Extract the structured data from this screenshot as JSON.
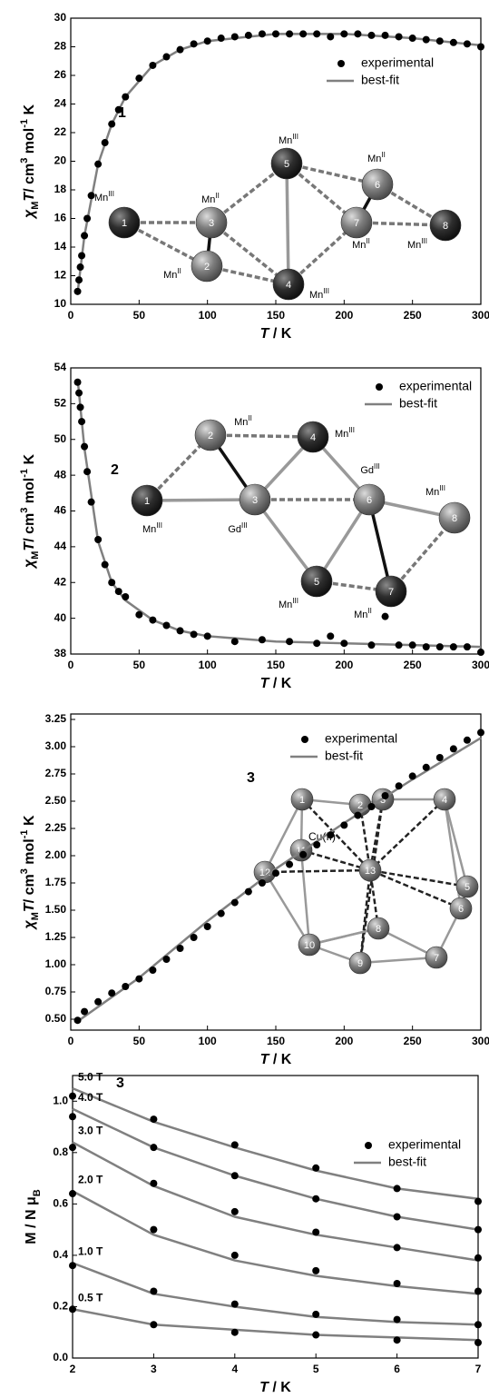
{
  "chart_data": [
    {
      "type": "scatter",
      "label": "1",
      "xlim": [
        0,
        300
      ],
      "ylim": [
        10,
        30
      ],
      "xticks": [
        0,
        50,
        100,
        150,
        200,
        250,
        300
      ],
      "yticks": [
        10,
        12,
        14,
        16,
        18,
        20,
        22,
        24,
        26,
        28,
        30
      ],
      "xlabel": [
        "T",
        " / K"
      ],
      "ylabel": [
        "χ",
        "M",
        "T",
        "/ cm",
        "3",
        " mol",
        "-1",
        " K"
      ],
      "legend": "upper right",
      "series": [
        {
          "name": "experimental",
          "mode": "markers",
          "color": "#000000",
          "x": [
            5,
            6,
            7,
            8,
            10,
            12,
            15,
            20,
            25,
            30,
            35,
            40,
            50,
            60,
            70,
            80,
            90,
            100,
            110,
            120,
            130,
            140,
            150,
            160,
            170,
            180,
            190,
            200,
            210,
            220,
            230,
            240,
            250,
            260,
            270,
            280,
            290,
            300
          ],
          "values": [
            10.9,
            11.7,
            12.6,
            13.4,
            14.8,
            16.0,
            17.6,
            19.8,
            21.3,
            22.6,
            23.6,
            24.5,
            25.8,
            26.7,
            27.3,
            27.8,
            28.2,
            28.4,
            28.6,
            28.7,
            28.8,
            28.9,
            28.9,
            28.9,
            28.9,
            28.9,
            28.7,
            28.9,
            28.9,
            28.8,
            28.8,
            28.7,
            28.6,
            28.5,
            28.4,
            28.3,
            28.2,
            28.0
          ]
        },
        {
          "name": "best-fit",
          "mode": "line",
          "color": "#808080",
          "x": [
            5,
            10,
            20,
            30,
            40,
            60,
            80,
            100,
            150,
            200,
            250,
            300
          ],
          "values": [
            10.8,
            14.8,
            19.8,
            22.6,
            24.5,
            26.7,
            27.8,
            28.4,
            28.9,
            28.9,
            28.6,
            28.1
          ]
        }
      ],
      "inset": {
        "nodes": [
          {
            "label": "1",
            "element": "Mn",
            "oxidation": "III"
          },
          {
            "label": "2",
            "element": "Mn",
            "oxidation": "II"
          },
          {
            "label": "3",
            "element": "Mn",
            "oxidation": "II"
          },
          {
            "label": "4",
            "element": "Mn",
            "oxidation": "III"
          },
          {
            "label": "5",
            "element": "Mn",
            "oxidation": "III"
          },
          {
            "label": "6",
            "element": "Mn",
            "oxidation": "II"
          },
          {
            "label": "7",
            "element": "Mn",
            "oxidation": "II"
          },
          {
            "label": "8",
            "element": "Mn",
            "oxidation": "III"
          }
        ]
      }
    },
    {
      "type": "scatter",
      "label": "2",
      "xlim": [
        0,
        300
      ],
      "ylim": [
        38,
        54
      ],
      "xticks": [
        0,
        50,
        100,
        150,
        200,
        250,
        300
      ],
      "yticks": [
        38,
        40,
        42,
        44,
        46,
        48,
        50,
        52,
        54
      ],
      "xlabel": [
        "T",
        " / K"
      ],
      "ylabel": [
        "χ",
        "M",
        "T",
        "/ cm",
        "3",
        " mol",
        "-1",
        " K"
      ],
      "legend": "upper right",
      "series": [
        {
          "name": "experimental",
          "mode": "markers",
          "color": "#000000",
          "x": [
            5,
            6,
            7,
            8,
            10,
            12,
            15,
            20,
            25,
            30,
            35,
            40,
            50,
            60,
            70,
            80,
            90,
            100,
            120,
            140,
            160,
            180,
            190,
            200,
            220,
            230,
            240,
            250,
            260,
            270,
            280,
            290,
            300
          ],
          "values": [
            53.2,
            52.6,
            51.8,
            51.0,
            49.6,
            48.2,
            46.5,
            44.4,
            43.0,
            42.0,
            41.5,
            41.2,
            40.2,
            39.9,
            39.6,
            39.3,
            39.1,
            39.0,
            38.7,
            38.8,
            38.7,
            38.6,
            39.0,
            38.6,
            38.5,
            40.1,
            38.5,
            38.5,
            38.4,
            38.4,
            38.4,
            38.4,
            38.1
          ]
        },
        {
          "name": "best-fit",
          "mode": "line",
          "color": "#808080",
          "x": [
            5,
            10,
            20,
            30,
            40,
            60,
            80,
            100,
            150,
            200,
            250,
            300
          ],
          "values": [
            53.4,
            49.5,
            44.3,
            42.0,
            41.0,
            39.9,
            39.3,
            39.0,
            38.7,
            38.6,
            38.5,
            38.4
          ]
        }
      ],
      "inset": {
        "nodes": [
          {
            "label": "1",
            "element": "Mn",
            "oxidation": "III"
          },
          {
            "label": "2",
            "element": "Mn",
            "oxidation": "II"
          },
          {
            "label": "3",
            "element": "Gd",
            "oxidation": "III"
          },
          {
            "label": "4",
            "element": "Mn",
            "oxidation": "III"
          },
          {
            "label": "5",
            "element": "Mn",
            "oxidation": "III"
          },
          {
            "label": "6",
            "element": "Gd",
            "oxidation": "III"
          },
          {
            "label": "7",
            "element": "Mn",
            "oxidation": "II"
          },
          {
            "label": "8",
            "element": "Mn",
            "oxidation": "III"
          }
        ]
      }
    },
    {
      "type": "scatter",
      "label": "3",
      "xlim": [
        0,
        300
      ],
      "ylim": [
        0.4,
        3.3
      ],
      "xticks": [
        0,
        50,
        100,
        150,
        200,
        250,
        300
      ],
      "yticks": [
        {
          "value": 0.5,
          "label": "0.50"
        },
        0.75,
        {
          "value": 1,
          "label": "1.00"
        },
        1.25,
        {
          "value": 1.5,
          "label": "1.50"
        },
        1.75,
        {
          "value": 2,
          "label": "2.00"
        },
        2.25,
        {
          "value": 2.5,
          "label": "2.50"
        },
        2.75,
        {
          "value": 3,
          "label": "3.00"
        },
        3.25
      ],
      "xlabel": [
        "T",
        " / K"
      ],
      "ylabel": [
        "χ",
        "M",
        "T",
        "/ cm",
        "3",
        " mol",
        "-1",
        " K"
      ],
      "legend": "upper right",
      "series": [
        {
          "name": "experimental",
          "mode": "markers",
          "color": "#000000",
          "x": [
            5,
            10,
            20,
            30,
            40,
            50,
            60,
            70,
            80,
            90,
            100,
            110,
            120,
            130,
            140,
            150,
            160,
            170,
            180,
            190,
            200,
            210,
            220,
            230,
            240,
            250,
            260,
            270,
            280,
            290,
            300
          ],
          "values": [
            0.49,
            0.57,
            0.66,
            0.74,
            0.8,
            0.87,
            0.95,
            1.05,
            1.15,
            1.25,
            1.35,
            1.47,
            1.57,
            1.67,
            1.75,
            1.84,
            1.92,
            2.01,
            2.1,
            2.19,
            2.28,
            2.37,
            2.45,
            2.55,
            2.64,
            2.73,
            2.81,
            2.9,
            2.98,
            3.06,
            3.13
          ]
        },
        {
          "name": "best-fit",
          "mode": "line",
          "color": "#808080",
          "x": [
            5,
            50,
            100,
            150,
            200,
            250,
            300
          ],
          "values": [
            0.48,
            0.88,
            1.4,
            1.88,
            2.3,
            2.7,
            3.08
          ]
        }
      ],
      "inset": {
        "note": "Cu(II)",
        "nodes": [
          {
            "label": "1"
          },
          {
            "label": "2"
          },
          {
            "label": "3"
          },
          {
            "label": "4"
          },
          {
            "label": "5"
          },
          {
            "label": "6"
          },
          {
            "label": "7"
          },
          {
            "label": "8"
          },
          {
            "label": "9"
          },
          {
            "label": "10"
          },
          {
            "label": "11"
          },
          {
            "label": "12"
          },
          {
            "label": "13"
          }
        ]
      }
    },
    {
      "type": "field-scatter",
      "label": "3",
      "xlim": [
        2,
        7
      ],
      "ylim": [
        0,
        1.1
      ],
      "xticks": [
        2,
        3,
        4,
        5,
        6,
        7
      ],
      "yticks": [
        {
          "value": 0,
          "label": "0.0"
        },
        0.2,
        0.4,
        0.6,
        0.8,
        {
          "value": 1,
          "label": "1.0"
        }
      ],
      "xlabel": [
        "T",
        " / K"
      ],
      "ylabel": [
        "M / N μ",
        "B"
      ],
      "legend": "center right",
      "x": [
        2,
        3,
        4,
        5,
        6,
        7
      ],
      "group_labels": [
        "5.0 T",
        "4.0 T",
        "3.0 T",
        "2.0 T",
        "1.0 T",
        "0.5 T"
      ],
      "series": [
        {
          "name": "experimental",
          "mode": "markers",
          "color": "#000000",
          "groups": [
            [
              1.02,
              0.93,
              0.83,
              0.74,
              0.66,
              0.61
            ],
            [
              0.94,
              0.82,
              0.71,
              0.62,
              0.55,
              0.5
            ],
            [
              0.82,
              0.68,
              0.57,
              0.49,
              0.43,
              0.39
            ],
            [
              0.64,
              0.5,
              0.4,
              0.34,
              0.29,
              0.26
            ],
            [
              0.36,
              0.26,
              0.21,
              0.17,
              0.15,
              0.13
            ],
            [
              0.19,
              0.13,
              0.1,
              0.09,
              0.07,
              0.06
            ]
          ]
        },
        {
          "name": "best-fit",
          "mode": "line",
          "color": "#808080",
          "groups": [
            [
              1.05,
              0.92,
              0.82,
              0.73,
              0.66,
              0.62
            ],
            [
              0.97,
              0.82,
              0.71,
              0.62,
              0.55,
              0.5
            ],
            [
              0.84,
              0.67,
              0.55,
              0.48,
              0.43,
              0.38
            ],
            [
              0.65,
              0.48,
              0.38,
              0.32,
              0.28,
              0.25
            ],
            [
              0.37,
              0.25,
              0.2,
              0.16,
              0.14,
              0.13
            ],
            [
              0.19,
              0.13,
              0.11,
              0.09,
              0.08,
              0.07
            ]
          ]
        }
      ]
    }
  ]
}
